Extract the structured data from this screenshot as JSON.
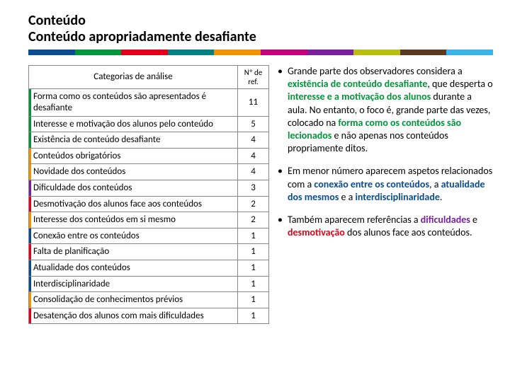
{
  "header": {
    "title1": "Conteúdo",
    "title2": "Conteúdo apropriadamente desafiante"
  },
  "colorbar": [
    "#0a4c91",
    "#009639",
    "#e2001a",
    "#008080",
    "#f39200",
    "#c8007a",
    "#7b1fa2",
    "#b7bf10",
    "#5a3a22",
    "#3ab4e8"
  ],
  "table": {
    "col_category": "Categorias de análise",
    "col_count": "Nº de ref.",
    "rows": [
      {
        "label": "Forma como os conteúdos são apresentados é desafiante",
        "count": 11,
        "marker": "#009639"
      },
      {
        "label": "Interesse e motivação dos alunos pelo conteúdo",
        "count": 5,
        "marker": "#009639"
      },
      {
        "label": "Existência de conteúdo desafiante",
        "count": 4,
        "marker": "#009639"
      },
      {
        "label": "Conteúdos obrigatórios",
        "count": 4,
        "marker": "#f39200"
      },
      {
        "label": "Novidade dos conteúdos",
        "count": 4,
        "marker": "#f39200"
      },
      {
        "label": "Dificuldade dos conteúdos",
        "count": 3,
        "marker": "#7b1fa2"
      },
      {
        "label": "Desmotivação dos alunos face aos conteúdos",
        "count": 2,
        "marker": "#e2001a"
      },
      {
        "label": "Interesse dos conteúdos em si mesmo",
        "count": 2,
        "marker": "#f39200"
      },
      {
        "label": "Conexão entre os conteúdos",
        "count": 1,
        "marker": "#0a4c91"
      },
      {
        "label": "Falta de planificação",
        "count": 1,
        "marker": "#e2001a"
      },
      {
        "label": "Atualidade dos conteúdos",
        "count": 1,
        "marker": "#0a4c91"
      },
      {
        "label": "Interdisciplinaridade",
        "count": 1,
        "marker": "#0a4c91"
      },
      {
        "label": "Consolidação de conhecimentos prévios",
        "count": 1,
        "marker": "#f39200"
      },
      {
        "label": "Desatenção dos alunos com mais dificuldades",
        "count": 1,
        "marker": "#e2001a"
      }
    ]
  },
  "bullets": [
    {
      "pre": "Grande parte dos observadores considera a ",
      "hl1": "existência de conteúdo desafiante",
      "hl1_color": "#009639",
      "mid1": ", que desperta o ",
      "hl2": "interesse e a motivação dos alunos",
      "hl2_color": "#009639",
      "mid2": " durante a aula. No entanto, o foco é, grande parte das vezes, colocado na ",
      "hl3": "forma como os conteúdos são lecionados",
      "hl3_color": "#009639",
      "post": " e não apenas nos conteúdos propriamente ditos."
    },
    {
      "pre": "Em menor número aparecem aspetos relacionados com a ",
      "hl1": "conexão entre os conteúdos",
      "hl1_color": "#0a4c91",
      "mid1": ", a ",
      "hl2": "atualidade dos mesmos",
      "hl2_color": "#0a4c91",
      "mid2": " e a ",
      "hl3": "interdisciplinaridade",
      "hl3_color": "#0a4c91",
      "post": "."
    },
    {
      "pre": "Também aparecem referências a ",
      "hl1": "dificuldades",
      "hl1_color": "#7b1fa2",
      "mid1": " e ",
      "hl2": "desmotivação",
      "hl2_color": "#e2001a",
      "mid2": " dos alunos face aos conteúdos.",
      "hl3": "",
      "hl3_color": "#000",
      "post": ""
    }
  ]
}
